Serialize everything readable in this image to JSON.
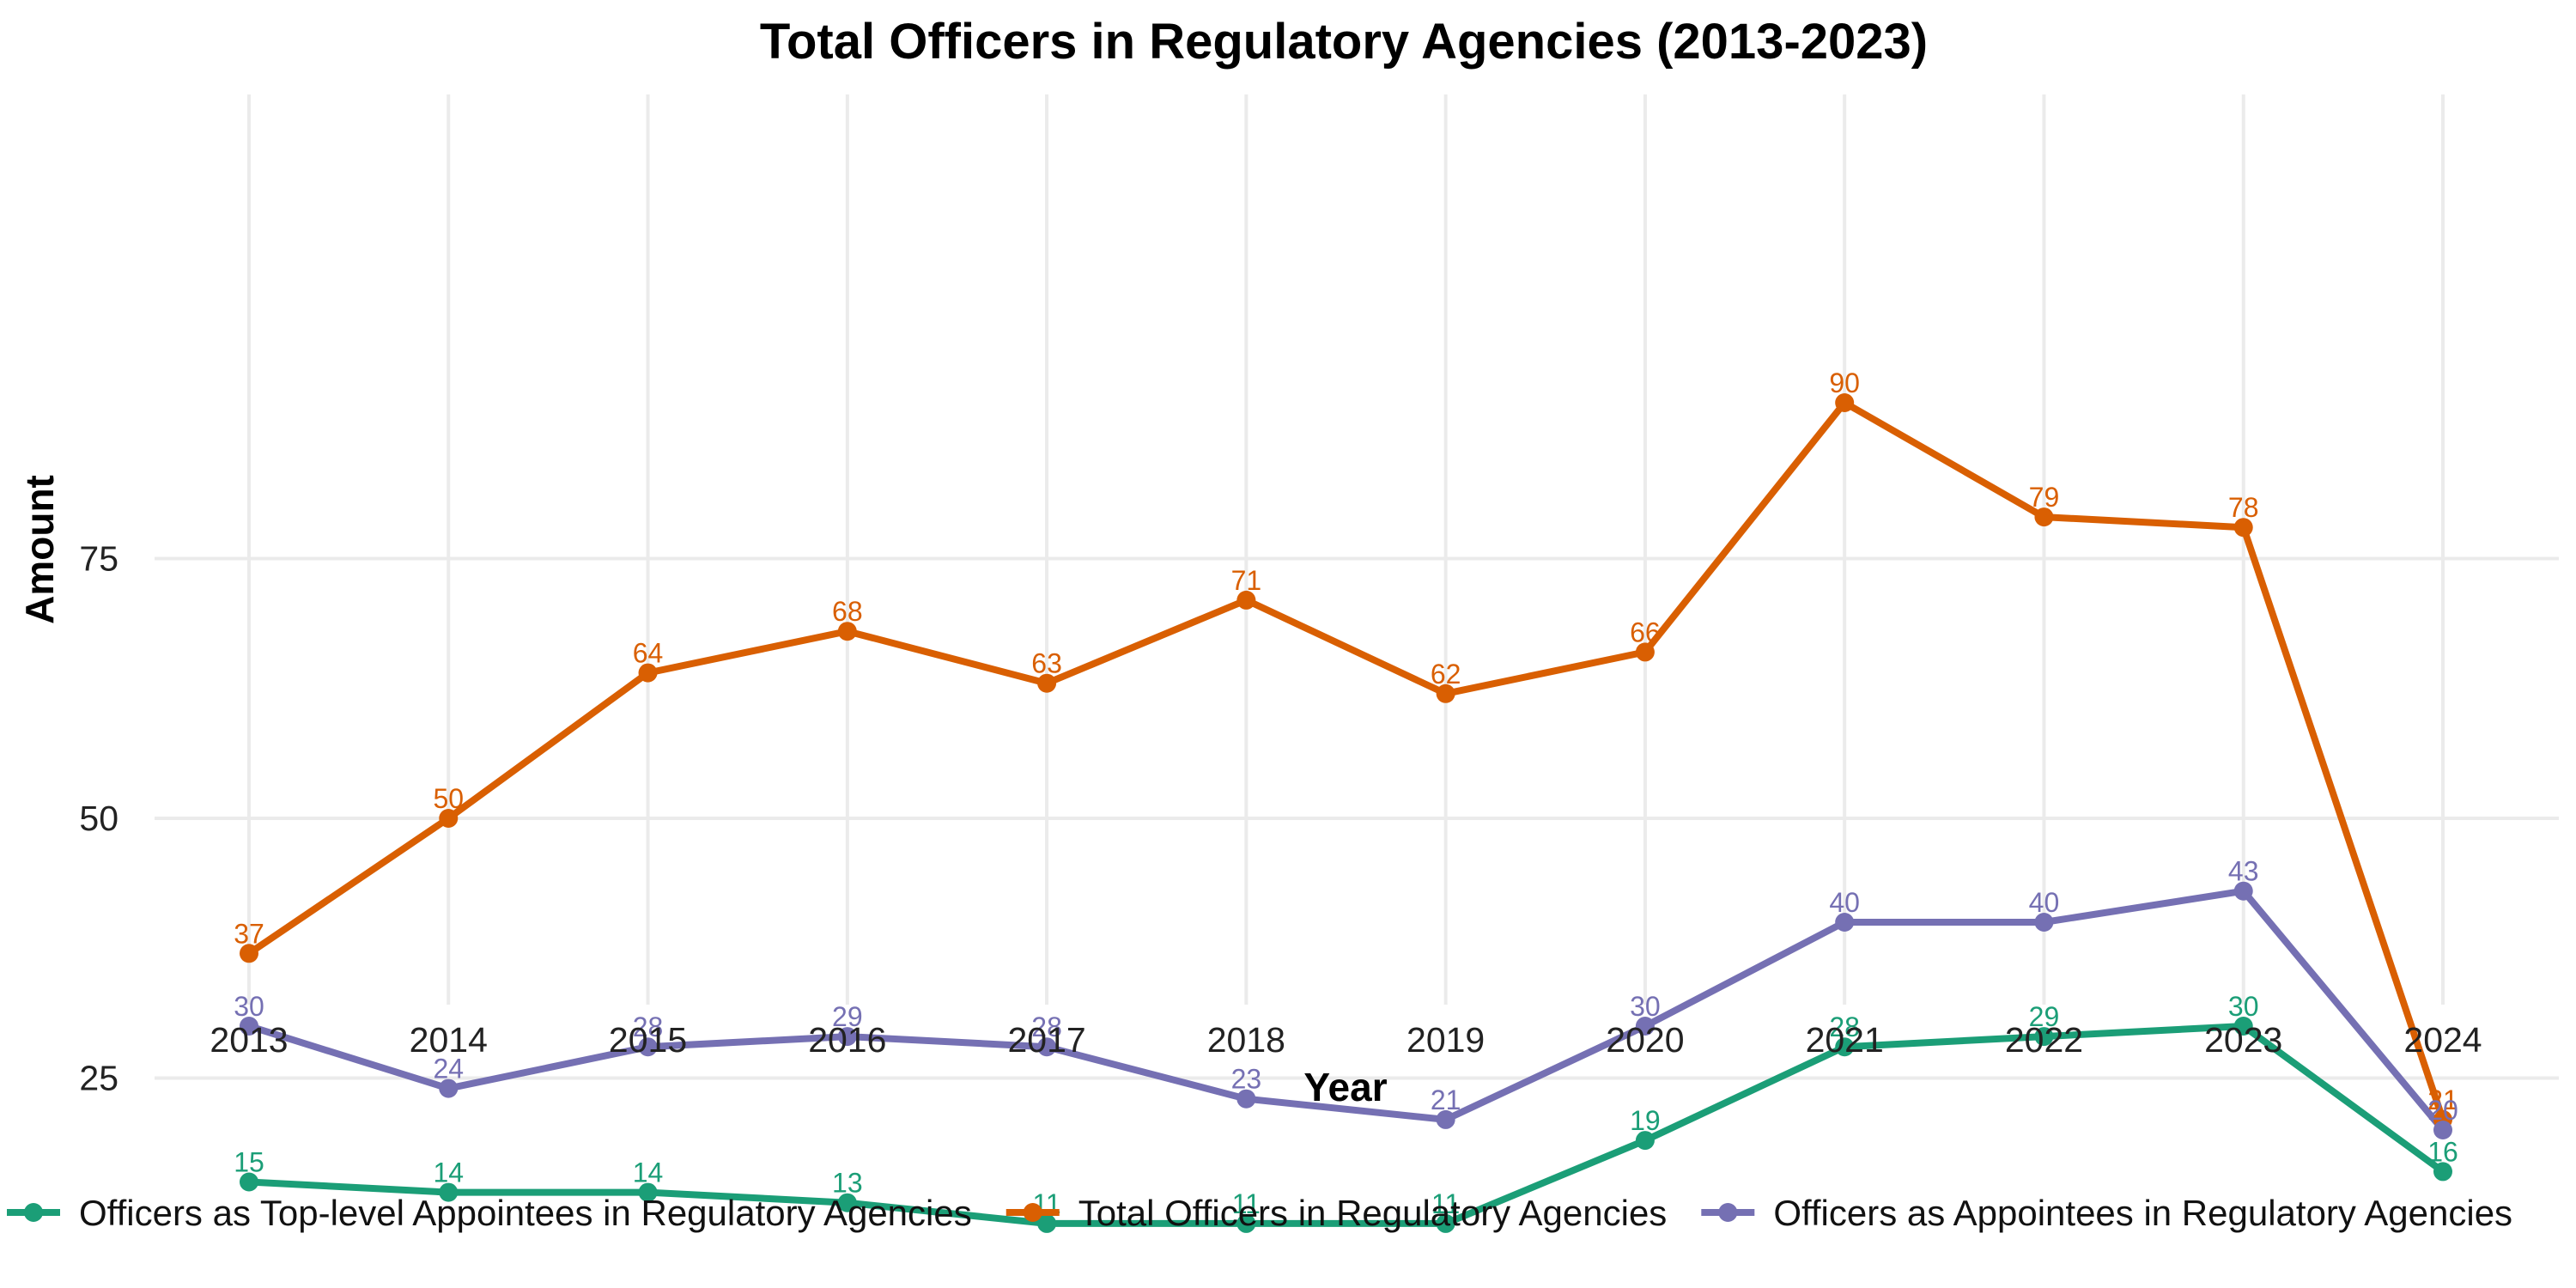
{
  "chart_data": {
    "type": "line",
    "title": "Total Officers in Regulatory Agencies (2013-2023)",
    "xlabel": "Year",
    "ylabel": "Amount",
    "x": [
      2013,
      2014,
      2015,
      2016,
      2017,
      2018,
      2019,
      2020,
      2021,
      2022,
      2023,
      2024
    ],
    "x_tick_labels": [
      "2013",
      "2014",
      "2015",
      "2016",
      "2017",
      "2018",
      "2019",
      "2020",
      "2021",
      "2022",
      "2023",
      "2024"
    ],
    "yticks": [
      25,
      50,
      75
    ],
    "y_tick_labels": [
      "25",
      "50",
      "75"
    ],
    "ylim": [
      7,
      95
    ],
    "grid": true,
    "legend_position": "bottom",
    "series": [
      {
        "name": "Officers as Top-level Appointees in Regulatory Agencies",
        "color": "#1b9e77",
        "values": [
          15,
          14,
          14,
          13,
          11,
          11,
          11,
          19,
          28,
          29,
          30,
          16
        ]
      },
      {
        "name": "Total Officers in Regulatory Agencies",
        "color": "#d95f02",
        "values": [
          37,
          50,
          64,
          68,
          63,
          71,
          62,
          66,
          90,
          79,
          78,
          21
        ]
      },
      {
        "name": "Officers as Appointees in Regulatory Agencies",
        "color": "#7570b3",
        "values": [
          30,
          24,
          28,
          29,
          28,
          23,
          21,
          30,
          40,
          40,
          43,
          20
        ]
      }
    ]
  }
}
